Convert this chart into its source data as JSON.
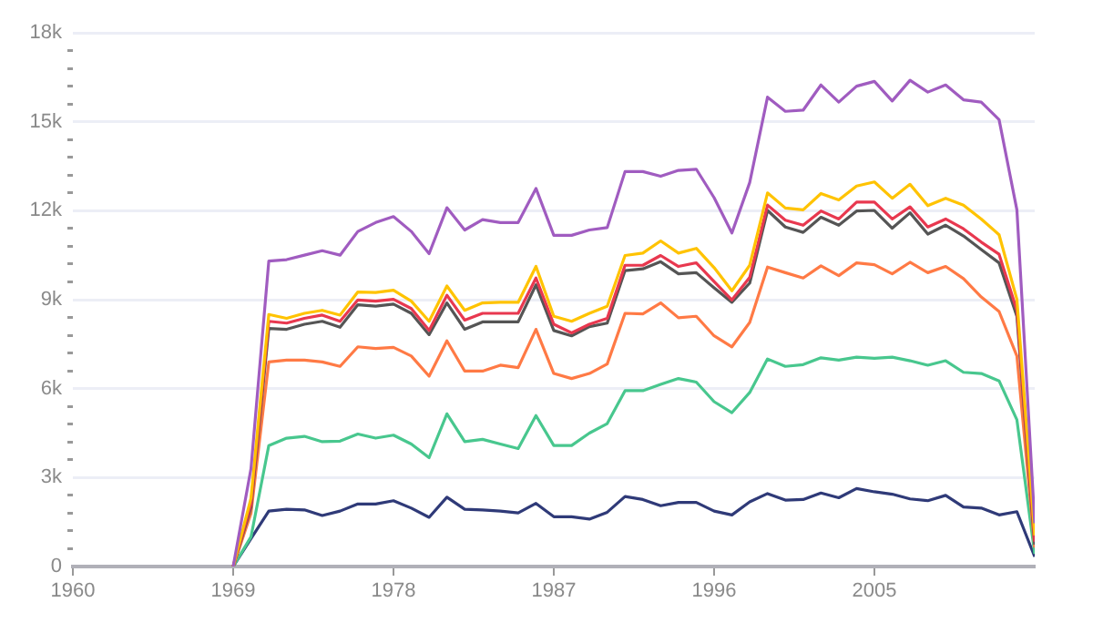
{
  "chart_data": {
    "type": "line",
    "x": [
      1969,
      1970,
      1971,
      1972,
      1973,
      1974,
      1975,
      1976,
      1977,
      1978,
      1979,
      1980,
      1981,
      1982,
      1983,
      1984,
      1985,
      1986,
      1987,
      1988,
      1989,
      1990,
      1991,
      1992,
      1993,
      1994,
      1995,
      1996,
      1997,
      1998,
      1999,
      2000,
      2001,
      2002,
      2003,
      2004,
      2005,
      2006,
      2007,
      2008,
      2009,
      2010,
      2011,
      2012,
      2013,
      2014
    ],
    "series": [
      {
        "color": "#a05cc0",
        "values": [
          0,
          3300,
          10300,
          10350,
          10500,
          10650,
          10500,
          11300,
          11600,
          11800,
          11300,
          10550,
          12100,
          11350,
          11700,
          11600,
          11600,
          12750,
          11170,
          11170,
          11350,
          11430,
          13320,
          13320,
          13160,
          13360,
          13400,
          12440,
          11250,
          12950,
          15830,
          15350,
          15390,
          16240,
          15660,
          16200,
          16360,
          15700,
          16400,
          16000,
          16240,
          15740,
          15660,
          15070,
          12030,
          1460
        ]
      },
      {
        "color": "#ffc300",
        "values": [
          0,
          2300,
          8500,
          8370,
          8540,
          8640,
          8480,
          9260,
          9240,
          9320,
          8950,
          8270,
          9460,
          8640,
          8890,
          8910,
          8910,
          10120,
          8440,
          8270,
          8540,
          8780,
          10490,
          10570,
          10980,
          10570,
          10730,
          10080,
          9300,
          10160,
          12600,
          12090,
          12030,
          12580,
          12360,
          12830,
          12970,
          12420,
          12890,
          12170,
          12420,
          12190,
          11720,
          11190,
          9010,
          1050
        ]
      },
      {
        "color": "#e8384f",
        "values": [
          0,
          2100,
          8270,
          8210,
          8370,
          8480,
          8270,
          8990,
          8950,
          9010,
          8700,
          7960,
          9150,
          8310,
          8540,
          8540,
          8540,
          9730,
          8170,
          7880,
          8170,
          8370,
          10160,
          10160,
          10490,
          10120,
          10240,
          9610,
          8990,
          9750,
          12190,
          11680,
          11510,
          11990,
          11720,
          12290,
          12290,
          11720,
          12130,
          11450,
          11720,
          11390,
          10940,
          10530,
          8640,
          840
        ]
      },
      {
        "color": "#555555",
        "values": [
          0,
          2000,
          8030,
          8000,
          8170,
          8270,
          8070,
          8830,
          8780,
          8850,
          8540,
          7820,
          8890,
          8000,
          8250,
          8250,
          8250,
          9500,
          7960,
          7780,
          8090,
          8210,
          9980,
          10040,
          10280,
          9870,
          9910,
          9400,
          8910,
          9560,
          12010,
          11450,
          11270,
          11780,
          11510,
          11990,
          12010,
          11410,
          11930,
          11210,
          11510,
          11150,
          10690,
          10240,
          8440,
          740
        ]
      },
      {
        "color": "#ff7a45",
        "values": [
          0,
          1800,
          6900,
          6960,
          6960,
          6900,
          6750,
          7410,
          7350,
          7390,
          7100,
          6420,
          7610,
          6590,
          6590,
          6790,
          6710,
          8000,
          6510,
          6340,
          6510,
          6830,
          8540,
          8520,
          8890,
          8390,
          8440,
          7780,
          7410,
          8230,
          10100,
          9910,
          9730,
          10140,
          9810,
          10240,
          10180,
          9870,
          10260,
          9910,
          10120,
          9710,
          9090,
          8600,
          7100,
          640
        ]
      },
      {
        "color": "#48c78e",
        "values": [
          0,
          1000,
          4080,
          4330,
          4390,
          4210,
          4230,
          4470,
          4330,
          4430,
          4130,
          3670,
          5150,
          4210,
          4290,
          4130,
          3980,
          5090,
          4080,
          4080,
          4500,
          4820,
          5930,
          5930,
          6140,
          6340,
          6220,
          5560,
          5190,
          5870,
          7000,
          6750,
          6810,
          7040,
          6960,
          7060,
          7020,
          7060,
          6940,
          6790,
          6940,
          6550,
          6510,
          6260,
          4950,
          430
        ]
      },
      {
        "color": "#2f3a78",
        "values": [
          0,
          940,
          1870,
          1930,
          1910,
          1720,
          1870,
          2110,
          2110,
          2220,
          1970,
          1660,
          2340,
          1930,
          1910,
          1870,
          1810,
          2130,
          1680,
          1680,
          1600,
          1830,
          2360,
          2260,
          2050,
          2160,
          2160,
          1870,
          1740,
          2180,
          2460,
          2240,
          2260,
          2480,
          2320,
          2630,
          2520,
          2440,
          2280,
          2220,
          2400,
          2010,
          1970,
          1740,
          1850,
          330
        ]
      }
    ],
    "xlim": [
      1960,
      2014
    ],
    "xticks": [
      1960,
      1969,
      1978,
      1987,
      1996,
      2005
    ],
    "ylim": [
      0,
      18000
    ],
    "yticks": [
      0,
      {
        "value": 600,
        "label": null
      },
      {
        "value": 1200,
        "label": null
      },
      {
        "value": 1800,
        "label": null
      },
      {
        "value": 2400,
        "label": null
      },
      {
        "value": 3000,
        "label": "3k"
      },
      {
        "value": 3600,
        "label": null
      },
      {
        "value": 4200,
        "label": null
      },
      {
        "value": 4800,
        "label": null
      },
      {
        "value": 5400,
        "label": null
      },
      {
        "value": 6000,
        "label": "6k"
      },
      {
        "value": 6600,
        "label": null
      },
      {
        "value": 7200,
        "label": null
      },
      {
        "value": 7800,
        "label": null
      },
      {
        "value": 8400,
        "label": null
      },
      {
        "value": 9000,
        "label": "9k"
      },
      {
        "value": 9600,
        "label": null
      },
      {
        "value": 10200,
        "label": null
      },
      {
        "value": 10800,
        "label": null
      },
      {
        "value": 11400,
        "label": null
      },
      {
        "value": 12000,
        "label": "12k"
      },
      {
        "value": 12600,
        "label": null
      },
      {
        "value": 13200,
        "label": null
      },
      {
        "value": 13800,
        "label": null
      },
      {
        "value": 14400,
        "label": null
      },
      {
        "value": 15000,
        "label": "15k"
      },
      {
        "value": 15600,
        "label": null
      },
      {
        "value": 16200,
        "label": null
      },
      {
        "value": 16800,
        "label": null
      },
      {
        "value": 17400,
        "label": null
      },
      {
        "value": 18000,
        "label": "18k"
      }
    ],
    "grid": "y",
    "legend": false,
    "marker": "none",
    "line_style": "solid"
  }
}
